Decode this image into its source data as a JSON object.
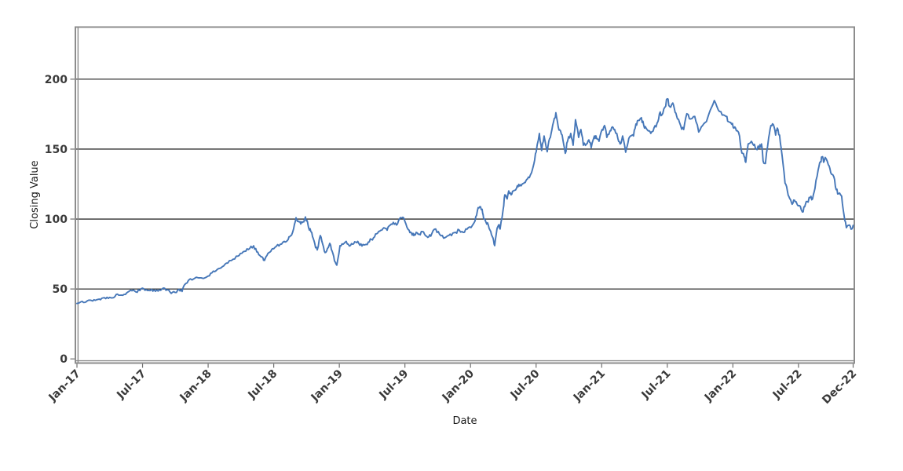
{
  "figure": {
    "background": "#ffffff",
    "title": ""
  },
  "chart_data": {
    "type": "line",
    "title": "",
    "xlabel": "Date",
    "ylabel": "Closing Value",
    "legend": "none",
    "grid": "horizontal-only",
    "line_color": "#4677b8",
    "gridline_color": "#000000",
    "frame_color": "#8c8c8c",
    "tick_color": "#6e6e6e",
    "tick_label_color": "#3a3a3a",
    "axis_title_color": "#1a1a1a",
    "x_tick_labels": [
      "Jan-17",
      "Jul-17",
      "Jan-18",
      "Jul-18",
      "Jan-19",
      "Jul-19",
      "Jan-20",
      "Jul-20",
      "Jan-21",
      "Jul-21",
      "Jan-22",
      "Jul-22",
      "Dec-22"
    ],
    "x_tick_months": [
      0,
      6,
      12,
      18,
      24,
      30,
      36,
      42,
      48,
      54,
      60,
      66,
      71
    ],
    "xlim_months": [
      0,
      71
    ],
    "y_ticks": [
      0,
      50,
      100,
      150,
      200
    ],
    "grid_y_values": [
      50,
      100,
      150,
      200
    ],
    "ylim": [
      0,
      237
    ],
    "x_unit": "months since Jan-2017",
    "points": [
      [
        0,
        39.6
      ],
      [
        0.36,
        40.8
      ],
      [
        0.72,
        40.4
      ],
      [
        1.08,
        42.0
      ],
      [
        1.44,
        41.4
      ],
      [
        1.8,
        42.3
      ],
      [
        2.15,
        42.3
      ],
      [
        2.51,
        43.8
      ],
      [
        2.87,
        43.3
      ],
      [
        3.23,
        43.6
      ],
      [
        3.59,
        46.1
      ],
      [
        3.95,
        45.5
      ],
      [
        4.31,
        46.1
      ],
      [
        4.67,
        47.9
      ],
      [
        5.03,
        48.7
      ],
      [
        5.39,
        47.9
      ],
      [
        5.75,
        48.9
      ],
      [
        6.1,
        50.2
      ],
      [
        6.46,
        48.9
      ],
      [
        6.82,
        49.8
      ],
      [
        7.18,
        48.3
      ],
      [
        7.54,
        49.4
      ],
      [
        7.9,
        50.7
      ],
      [
        8.26,
        49.4
      ],
      [
        8.62,
        46.8
      ],
      [
        8.98,
        47.5
      ],
      [
        9.34,
        49.8
      ],
      [
        9.62,
        48.2
      ],
      [
        9.84,
        53.0
      ],
      [
        10.2,
        56.2
      ],
      [
        10.7,
        57.3
      ],
      [
        11.35,
        58.0
      ],
      [
        12.0,
        59.2
      ],
      [
        12.35,
        61.5
      ],
      [
        12.71,
        63.0
      ],
      [
        13.07,
        64.8
      ],
      [
        13.43,
        66.5
      ],
      [
        13.79,
        68.5
      ],
      [
        14.29,
        71.3
      ],
      [
        14.72,
        73.5
      ],
      [
        15.08,
        75.5
      ],
      [
        15.44,
        77.0
      ],
      [
        15.8,
        79.0
      ],
      [
        16.16,
        80.9
      ],
      [
        16.45,
        76.5
      ],
      [
        16.73,
        74.0
      ],
      [
        17.02,
        72.0
      ],
      [
        17.16,
        70.4
      ],
      [
        17.38,
        74.0
      ],
      [
        17.67,
        76.5
      ],
      [
        17.88,
        78.8
      ],
      [
        18.24,
        80.5
      ],
      [
        18.6,
        82.0
      ],
      [
        18.96,
        84.0
      ],
      [
        19.32,
        85.4
      ],
      [
        19.54,
        88.0
      ],
      [
        19.82,
        93.0
      ],
      [
        20.04,
        101.0
      ],
      [
        20.25,
        98.5
      ],
      [
        20.47,
        96.5
      ],
      [
        20.68,
        98.0
      ],
      [
        20.9,
        101.5
      ],
      [
        21.04,
        99.0
      ],
      [
        21.19,
        93.8
      ],
      [
        21.4,
        91.0
      ],
      [
        21.62,
        86.0
      ],
      [
        21.83,
        79.5
      ],
      [
        21.98,
        77.9
      ],
      [
        22.26,
        88.2
      ],
      [
        22.48,
        82.0
      ],
      [
        22.7,
        76.0
      ],
      [
        22.91,
        79.0
      ],
      [
        23.13,
        82.6
      ],
      [
        23.34,
        77.0
      ],
      [
        23.56,
        70.0
      ],
      [
        23.77,
        67.0
      ],
      [
        24.06,
        81.0
      ],
      [
        24.35,
        82.0
      ],
      [
        24.63,
        84.0
      ],
      [
        24.92,
        80.7
      ],
      [
        25.21,
        82.0
      ],
      [
        25.5,
        83.5
      ],
      [
        25.78,
        82.6
      ],
      [
        26.07,
        80.7
      ],
      [
        26.36,
        81.6
      ],
      [
        26.65,
        83.5
      ],
      [
        26.93,
        85.5
      ],
      [
        27.22,
        87.2
      ],
      [
        27.51,
        90.0
      ],
      [
        27.8,
        92.0
      ],
      [
        28.08,
        93.8
      ],
      [
        28.37,
        92.0
      ],
      [
        28.66,
        95.7
      ],
      [
        28.94,
        97.6
      ],
      [
        29.23,
        95.7
      ],
      [
        29.52,
        100.4
      ],
      [
        29.81,
        101.3
      ],
      [
        30.09,
        96.6
      ],
      [
        30.38,
        92.0
      ],
      [
        30.6,
        90.0
      ],
      [
        30.81,
        88.2
      ],
      [
        31.03,
        90.5
      ],
      [
        31.31,
        89.2
      ],
      [
        31.6,
        91.0
      ],
      [
        31.89,
        88.0
      ],
      [
        32.18,
        87.3
      ],
      [
        32.46,
        89.5
      ],
      [
        32.82,
        92.9
      ],
      [
        33.18,
        89.0
      ],
      [
        33.54,
        86.3
      ],
      [
        33.9,
        88.0
      ],
      [
        34.26,
        88.2
      ],
      [
        34.62,
        90.5
      ],
      [
        34.98,
        92.0
      ],
      [
        35.33,
        90.5
      ],
      [
        35.69,
        92.8
      ],
      [
        36.05,
        93.9
      ],
      [
        36.41,
        98.5
      ],
      [
        36.63,
        106.0
      ],
      [
        36.84,
        108.8
      ],
      [
        37.06,
        107.0
      ],
      [
        37.2,
        100.4
      ],
      [
        37.42,
        97.6
      ],
      [
        37.63,
        95.7
      ],
      [
        37.85,
        91.1
      ],
      [
        38.06,
        86.4
      ],
      [
        38.21,
        81.0
      ],
      [
        38.42,
        92.9
      ],
      [
        38.56,
        95.7
      ],
      [
        38.71,
        92.9
      ],
      [
        38.99,
        107.0
      ],
      [
        39.14,
        117.3
      ],
      [
        39.35,
        114.4
      ],
      [
        39.5,
        120.1
      ],
      [
        39.71,
        117.3
      ],
      [
        39.92,
        120.1
      ],
      [
        40.21,
        122.0
      ],
      [
        40.42,
        124.8
      ],
      [
        40.64,
        123.8
      ],
      [
        40.86,
        125.5
      ],
      [
        41.08,
        127.5
      ],
      [
        41.29,
        130.0
      ],
      [
        41.58,
        133.1
      ],
      [
        41.8,
        139.7
      ],
      [
        42.01,
        148.1
      ],
      [
        42.3,
        161.2
      ],
      [
        42.51,
        149.0
      ],
      [
        42.73,
        159.4
      ],
      [
        43.02,
        148.1
      ],
      [
        43.23,
        157.5
      ],
      [
        43.45,
        164.0
      ],
      [
        43.66,
        172.0
      ],
      [
        43.81,
        176.0
      ],
      [
        44.02,
        166.0
      ],
      [
        44.24,
        163.0
      ],
      [
        44.45,
        156.6
      ],
      [
        44.67,
        147.0
      ],
      [
        44.88,
        155.6
      ],
      [
        45.17,
        161.2
      ],
      [
        45.39,
        152.8
      ],
      [
        45.6,
        171.0
      ],
      [
        45.89,
        158.4
      ],
      [
        46.1,
        164.0
      ],
      [
        46.32,
        152.8
      ],
      [
        46.61,
        153.7
      ],
      [
        46.82,
        156.6
      ],
      [
        47.04,
        151.0
      ],
      [
        47.33,
        159.4
      ],
      [
        47.54,
        157.5
      ],
      [
        47.76,
        155.6
      ],
      [
        48.04,
        164.0
      ],
      [
        48.26,
        166.9
      ],
      [
        48.47,
        158.4
      ],
      [
        48.76,
        163.1
      ],
      [
        48.98,
        165.9
      ],
      [
        49.19,
        164.0
      ],
      [
        49.48,
        157.5
      ],
      [
        49.69,
        153.7
      ],
      [
        49.91,
        159.4
      ],
      [
        50.19,
        147.8
      ],
      [
        50.41,
        154.7
      ],
      [
        50.63,
        159.4
      ],
      [
        50.91,
        159.4
      ],
      [
        51.13,
        168.0
      ],
      [
        51.34,
        170.6
      ],
      [
        51.63,
        172.5
      ],
      [
        51.85,
        166.9
      ],
      [
        52.06,
        165.0
      ],
      [
        52.35,
        163.1
      ],
      [
        52.56,
        162.2
      ],
      [
        52.78,
        165.0
      ],
      [
        53.07,
        168.8
      ],
      [
        53.28,
        175.3
      ],
      [
        53.5,
        174.4
      ],
      [
        53.78,
        180.0
      ],
      [
        54.0,
        186.0
      ],
      [
        54.21,
        180.5
      ],
      [
        54.5,
        183.0
      ],
      [
        54.72,
        176.3
      ],
      [
        54.93,
        171.6
      ],
      [
        55.22,
        166.9
      ],
      [
        55.5,
        164.0
      ],
      [
        55.79,
        175.3
      ],
      [
        56.15,
        171.6
      ],
      [
        56.51,
        173.4
      ],
      [
        56.87,
        162.2
      ],
      [
        57.23,
        166.9
      ],
      [
        57.58,
        169.7
      ],
      [
        57.94,
        178.1
      ],
      [
        58.3,
        184.7
      ],
      [
        58.66,
        178.1
      ],
      [
        59.02,
        174.4
      ],
      [
        59.38,
        173.4
      ],
      [
        59.6,
        169.7
      ],
      [
        59.89,
        167.8
      ],
      [
        60.1,
        165.0
      ],
      [
        60.32,
        163.1
      ],
      [
        60.61,
        159.4
      ],
      [
        60.82,
        147.2
      ],
      [
        61.04,
        144.4
      ],
      [
        61.18,
        140.6
      ],
      [
        61.4,
        153.7
      ],
      [
        61.69,
        155.6
      ],
      [
        61.9,
        152.8
      ],
      [
        62.12,
        150.0
      ],
      [
        62.4,
        151.0
      ],
      [
        62.62,
        153.7
      ],
      [
        62.76,
        141.6
      ],
      [
        62.98,
        139.7
      ],
      [
        63.27,
        158.0
      ],
      [
        63.48,
        166.9
      ],
      [
        63.7,
        167.5
      ],
      [
        63.91,
        160.0
      ],
      [
        64.06,
        165.0
      ],
      [
        64.27,
        160.0
      ],
      [
        64.49,
        146.0
      ],
      [
        64.77,
        125.6
      ],
      [
        64.99,
        120.0
      ],
      [
        65.21,
        114.5
      ],
      [
        65.42,
        110.6
      ],
      [
        65.64,
        113.4
      ],
      [
        65.85,
        111.0
      ],
      [
        66.07,
        109.7
      ],
      [
        66.36,
        105.0
      ],
      [
        66.57,
        108.8
      ],
      [
        66.79,
        112.5
      ],
      [
        67.07,
        115.3
      ],
      [
        67.29,
        114.4
      ],
      [
        67.51,
        121.9
      ],
      [
        67.8,
        135.0
      ],
      [
        68.01,
        141.0
      ],
      [
        68.16,
        144.5
      ],
      [
        68.3,
        140.6
      ],
      [
        68.44,
        144.0
      ],
      [
        68.73,
        138.8
      ],
      [
        68.95,
        133.1
      ],
      [
        69.23,
        130.3
      ],
      [
        69.45,
        121.0
      ],
      [
        69.66,
        118.1
      ],
      [
        69.95,
        116.3
      ],
      [
        70.16,
        103.2
      ],
      [
        70.38,
        93.8
      ],
      [
        70.67,
        95.7
      ],
      [
        70.88,
        92.9
      ],
      [
        71.0,
        95.5
      ]
    ]
  }
}
